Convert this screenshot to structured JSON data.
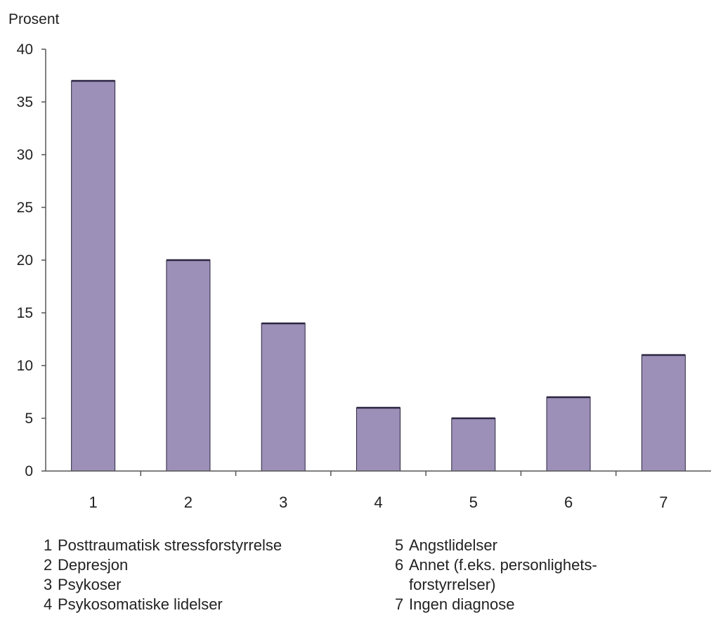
{
  "chart_data": {
    "type": "bar",
    "categories": [
      "1",
      "2",
      "3",
      "4",
      "5",
      "6",
      "7"
    ],
    "values": [
      37,
      20,
      14,
      6,
      5,
      7,
      11
    ],
    "ylabel": "Prosent",
    "ylim": [
      0,
      40
    ],
    "yticks": [
      "0",
      "5",
      "10",
      "15",
      "20",
      "25",
      "30",
      "35",
      "40"
    ],
    "grid": false,
    "bar_color": "#9c90b8",
    "bar_edge_color": "#2b2540"
  },
  "legend": {
    "left": [
      {
        "num": "1",
        "text": "Posttraumatisk stressforstyrrelse"
      },
      {
        "num": "2",
        "text": "Depresjon"
      },
      {
        "num": "3",
        "text": "Psykoser"
      },
      {
        "num": "4",
        "text": "Psykosomatiske lidelser"
      }
    ],
    "right": [
      {
        "num": "5",
        "text": "Angstlidelser"
      },
      {
        "num": "6",
        "text": "Annet (f.eks. personlighets-forstyrrelser)"
      },
      {
        "num": "7",
        "text": "Ingen diagnose"
      }
    ]
  }
}
